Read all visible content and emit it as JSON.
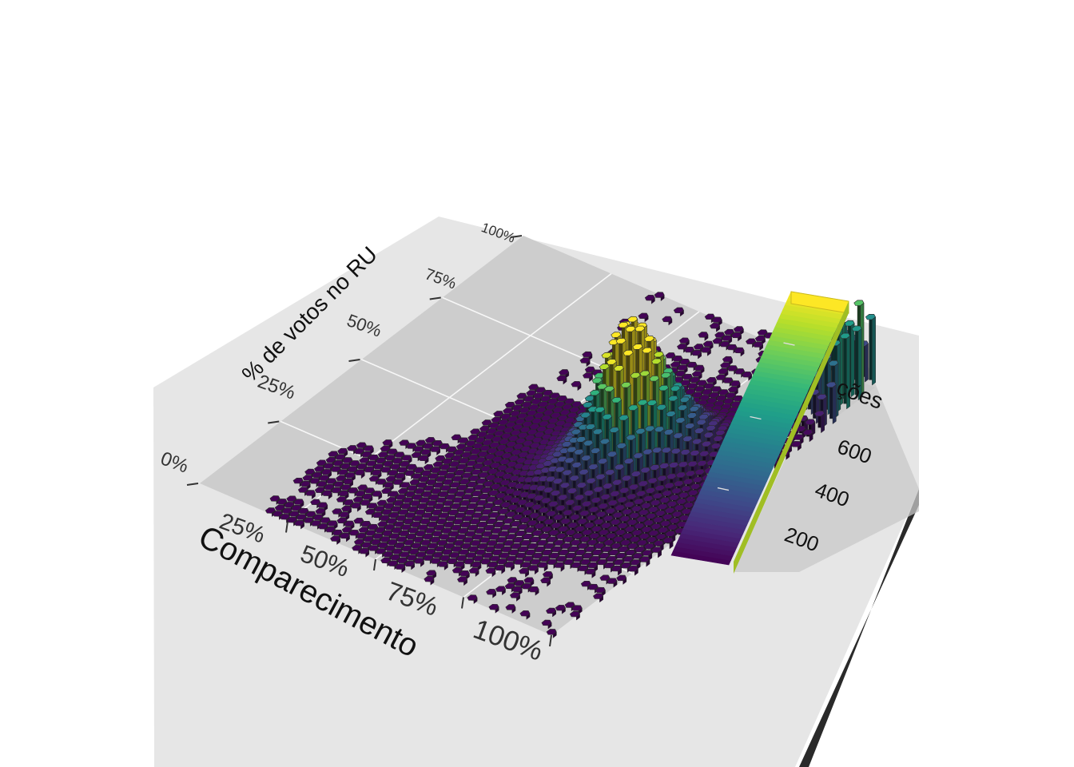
{
  "chart_data": {
    "type": "heatmap",
    "render_style": "3d hexbin (rayshader)",
    "xlabel": "Comparecimento",
    "ylabel": "% de votos no RU",
    "x_ticks": [
      "25%",
      "50%",
      "75%",
      "100%"
    ],
    "y_ticks": [
      "0%",
      "25%",
      "50%",
      "75%",
      "100%"
    ],
    "xlim": [
      0,
      100
    ],
    "ylim": [
      0,
      100
    ],
    "legend": {
      "title_visible_fragment": "ções",
      "ticks": [
        200,
        400,
        600
      ],
      "range": [
        0,
        720
      ],
      "placement": "right",
      "colormap": "viridis"
    },
    "grid": true,
    "peaks": [
      {
        "x": 99,
        "y": 99,
        "count": 720
      },
      {
        "x": 97,
        "y": 93,
        "count": 430
      },
      {
        "x": 72,
        "y": 52,
        "count": 560
      },
      {
        "x": 75,
        "y": 55,
        "count": 420
      },
      {
        "x": 80,
        "y": 62,
        "count": 170
      },
      {
        "x": 70,
        "y": 40,
        "count": 130
      }
    ]
  },
  "colors": {
    "viridis": [
      "#440154",
      "#482878",
      "#3e4989",
      "#31688e",
      "#26828e",
      "#1f9e89",
      "#35b779",
      "#6ece58",
      "#b5de2b",
      "#fde725"
    ],
    "base": "#e6e6e6",
    "panel": "#cdcdcd",
    "grid": "#f7f7f7",
    "edge": "#2b2b2b"
  }
}
